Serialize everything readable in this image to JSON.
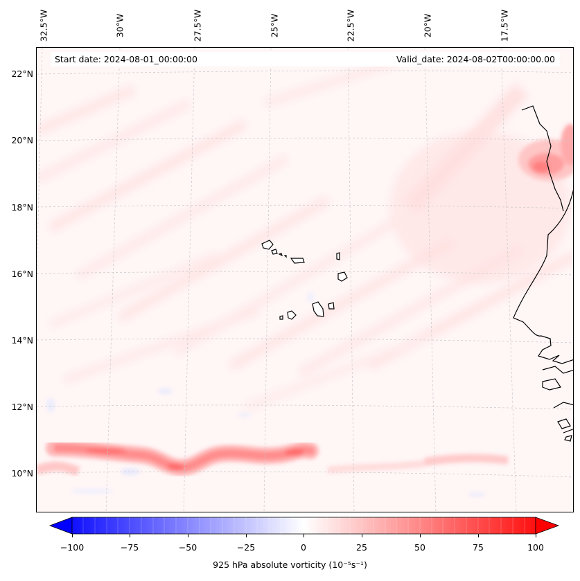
{
  "header": {
    "start_date": "Start date: 2024-08-01_00:00:00",
    "valid_date": "Valid_date: 2024-08-02T00:00:00.00"
  },
  "longitude_labels": [
    "32.5°W",
    "30°W",
    "27.5°W",
    "25°W",
    "22.5°W",
    "20°W",
    "17.5°W"
  ],
  "latitude_labels": [
    "22°N",
    "20°N",
    "18°N",
    "16°N",
    "14°N",
    "12°N",
    "10°N"
  ],
  "colorbar": {
    "ticks": [
      "−100",
      "−75",
      "−50",
      "−25",
      "0",
      "25",
      "50",
      "75",
      "100"
    ],
    "label": "925 hPa absolute vorticity (10⁻⁵s⁻¹)",
    "min_color": "#0000ff",
    "mid_color": "#ffffff",
    "max_color": "#ff0000"
  },
  "map": {
    "ocean_color": "#fef6f6",
    "coastline_color": "#000000",
    "gridline_color": "#c8c8c8"
  }
}
